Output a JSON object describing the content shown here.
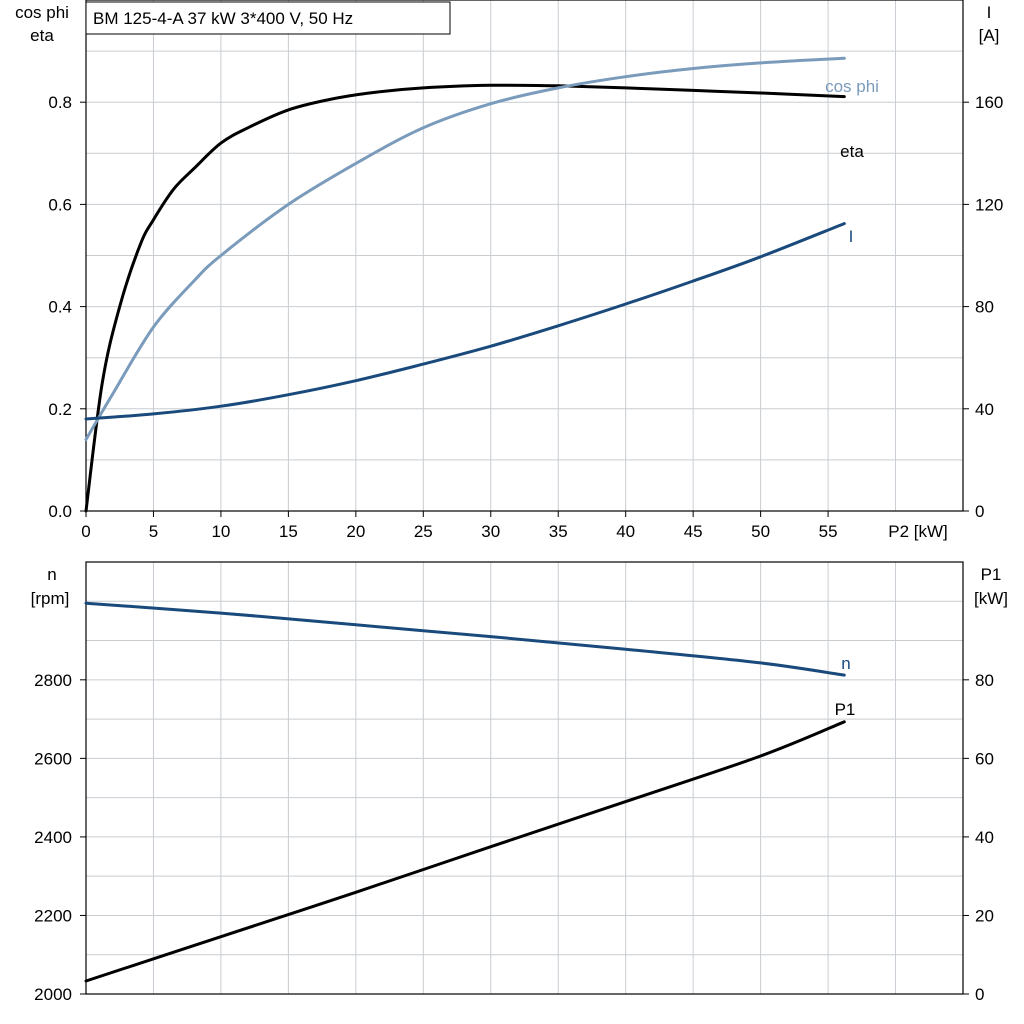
{
  "chart_data": [
    {
      "type": "line",
      "title": "BM 125-4-A   37 kW   3*400 V, 50 Hz",
      "x_axis": {
        "label": "P2 [kW]",
        "range": [
          0,
          65
        ],
        "ticks": [
          0,
          5,
          10,
          15,
          20,
          25,
          30,
          35,
          40,
          45,
          50,
          55
        ]
      },
      "y_left": {
        "label_line1": "cos phi",
        "label_line2": "eta",
        "range": [
          0,
          1.0
        ],
        "ticks": [
          0.0,
          0.2,
          0.4,
          0.6,
          0.8
        ],
        "tick_labels": [
          "0.0",
          "0.2",
          "0.4",
          "0.6",
          "0.8"
        ]
      },
      "y_right": {
        "label_line1": "I",
        "label_line2": "[A]",
        "range": [
          0,
          200
        ],
        "ticks": [
          0,
          40,
          80,
          120,
          160
        ],
        "tick_labels": [
          "0",
          "40",
          "80",
          "120",
          "160"
        ]
      },
      "grid": true,
      "series": [
        {
          "name": "eta",
          "axis": "left",
          "color": "#000000",
          "x": [
            0,
            1.2,
            2.5,
            4,
            5,
            6.5,
            8,
            10,
            12,
            15,
            18,
            21,
            25,
            30,
            35,
            40,
            45,
            50,
            56.2
          ],
          "y": [
            0.0,
            0.25,
            0.4,
            0.52,
            0.57,
            0.63,
            0.67,
            0.72,
            0.75,
            0.785,
            0.805,
            0.818,
            0.828,
            0.833,
            0.832,
            0.828,
            0.823,
            0.818,
            0.811
          ]
        },
        {
          "name": "cos phi",
          "axis": "left",
          "color": "#7a9bbb",
          "x": [
            0,
            2,
            5,
            8,
            10,
            15,
            20,
            25,
            30,
            35,
            40,
            45,
            50,
            56.2
          ],
          "y": [
            0.14,
            0.23,
            0.36,
            0.45,
            0.5,
            0.6,
            0.68,
            0.75,
            0.797,
            0.828,
            0.85,
            0.866,
            0.877,
            0.886
          ]
        },
        {
          "name": "I",
          "axis": "right",
          "color": "#1a4a7c",
          "x": [
            0,
            5,
            10,
            15,
            20,
            25,
            30,
            35,
            40,
            45,
            50,
            56.2
          ],
          "y": [
            36,
            38,
            41,
            45.5,
            51,
            57.5,
            64.5,
            72.5,
            81,
            90,
            99.5,
            112.5
          ]
        }
      ]
    },
    {
      "type": "line",
      "x_axis": {
        "label": "",
        "range": [
          0,
          65
        ],
        "ticks": [
          0,
          5,
          10,
          15,
          20,
          25,
          30,
          35,
          40,
          45,
          50,
          55
        ]
      },
      "y_left": {
        "label_line1": "n",
        "label_line2": "[rpm]",
        "range": [
          2000,
          3100
        ],
        "ticks": [
          2000,
          2200,
          2400,
          2600,
          2800
        ],
        "tick_labels": [
          "2000",
          "2200",
          "2400",
          "2600",
          "2800"
        ]
      },
      "y_right": {
        "label_line1": "P1",
        "label_line2": "[kW]",
        "range": [
          0,
          110
        ],
        "ticks": [
          0,
          20,
          40,
          60,
          80
        ],
        "tick_labels": [
          "0",
          "20",
          "40",
          "60",
          "80"
        ]
      },
      "grid": true,
      "series": [
        {
          "name": "n",
          "axis": "left",
          "color": "#1a4a7c",
          "x": [
            0,
            10,
            20,
            30,
            40,
            50,
            56.2
          ],
          "y": [
            2995,
            2970,
            2940,
            2910,
            2878,
            2843,
            2812
          ]
        },
        {
          "name": "P1",
          "axis": "right",
          "color": "#000000",
          "x": [
            0,
            10,
            20,
            30,
            40,
            50,
            56.2
          ],
          "y": [
            3.3,
            14.6,
            25.9,
            37.5,
            49.0,
            60.6,
            69.3
          ]
        }
      ]
    }
  ]
}
